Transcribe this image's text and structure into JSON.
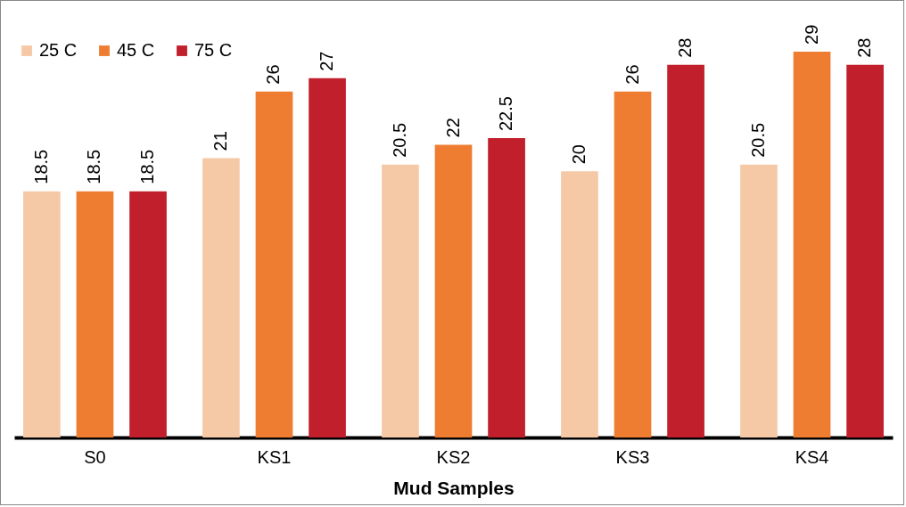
{
  "chart_data": {
    "type": "bar",
    "xlabel": "Mud Samples",
    "categories": [
      "S0",
      "KS1",
      "KS2",
      "KS3",
      "KS4"
    ],
    "series": [
      {
        "name": "25 C",
        "color": "#f6c9a6",
        "values": [
          18.5,
          21,
          20.5,
          20,
          20.5
        ]
      },
      {
        "name": "45 C",
        "color": "#ee7d31",
        "values": [
          18.5,
          26,
          22,
          26,
          29
        ]
      },
      {
        "name": "75 C",
        "color": "#c01f2b",
        "values": [
          18.5,
          27,
          22.5,
          28,
          28
        ]
      }
    ],
    "data_labels": true,
    "legend": "top left"
  }
}
